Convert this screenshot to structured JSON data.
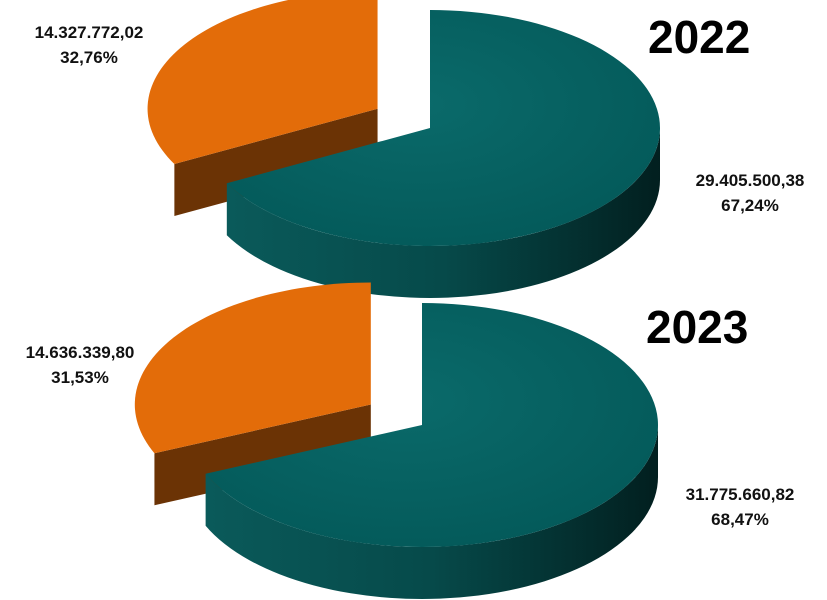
{
  "chart_data": [
    {
      "type": "pie",
      "title": "2022",
      "slices": [
        {
          "value": 14327772.02,
          "value_label": "14.327.772,02",
          "percent_label": "32,76%",
          "color": "#E36C09",
          "exploded": true
        },
        {
          "value": 29405500.38,
          "value_label": "29.405.500,38",
          "percent_label": "67,24%",
          "color": "#035F5F",
          "exploded": false
        }
      ]
    },
    {
      "type": "pie",
      "title": "2023",
      "slices": [
        {
          "value": 14636339.8,
          "value_label": "14.636.339,80",
          "percent_label": "31,53%",
          "color": "#E36C09",
          "exploded": true
        },
        {
          "value": 31775660.82,
          "value_label": "31.775.660,82",
          "percent_label": "68,47%",
          "color": "#035F5F",
          "exploded": false
        }
      ]
    }
  ]
}
